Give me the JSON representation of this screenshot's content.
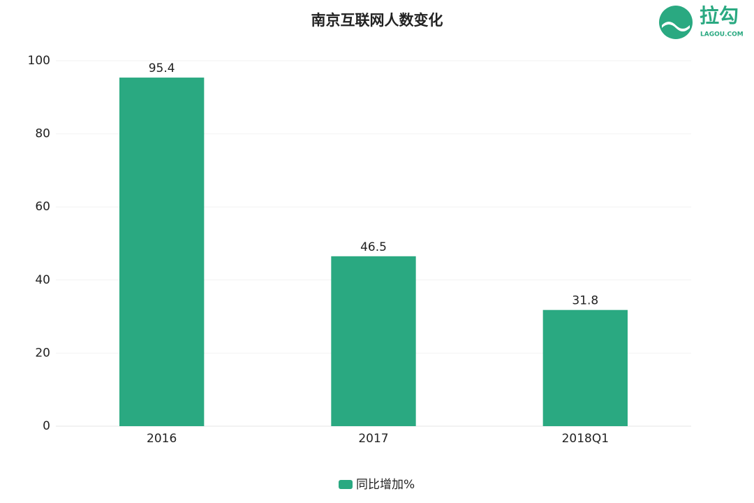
{
  "chart_data": {
    "type": "bar",
    "title": "南京互联网人数变化",
    "categories": [
      "2016",
      "2017",
      "2018Q1"
    ],
    "series": [
      {
        "name": "同比增加%",
        "color": "#2aa981",
        "values": [
          95.4,
          46.5,
          31.8
        ]
      }
    ],
    "ylim": [
      0,
      100
    ],
    "yticks": [
      0,
      20,
      40,
      60,
      80,
      100
    ],
    "grid": true,
    "legend": "bottom"
  },
  "logo": {
    "name": "拉勾",
    "site": "LAGOU.COM"
  }
}
